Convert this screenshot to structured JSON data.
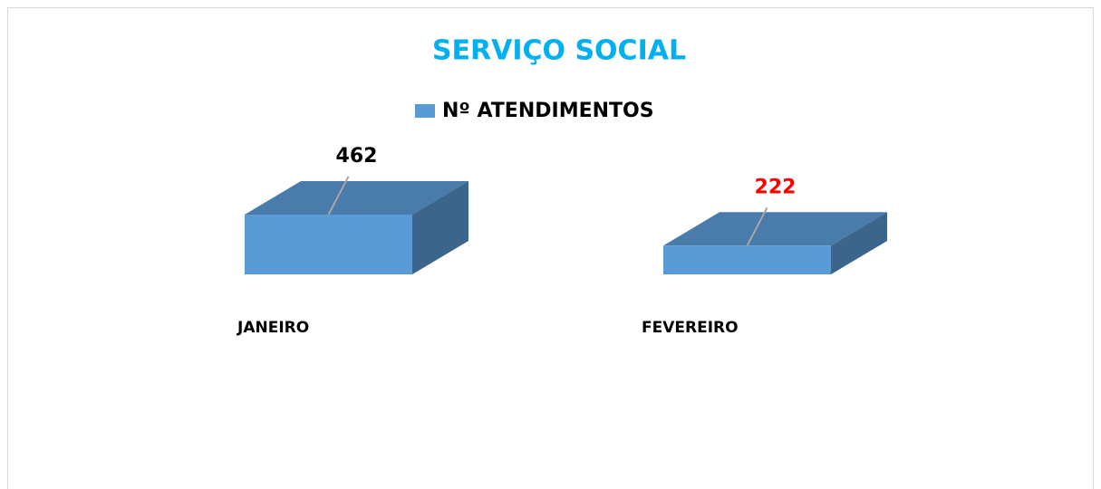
{
  "chart_data": {
    "type": "bar3d",
    "title": "SERVIÇO SOCIAL",
    "series": [
      {
        "name": "Nº ATENDIMENTOS",
        "color": "#5b9bd5",
        "values": [
          462,
          222
        ]
      }
    ],
    "categories": [
      "JANEIRO",
      "FEVEREIRO"
    ],
    "value_label_colors": [
      "#000000",
      "#ff0000"
    ],
    "title_color": "#00b0f0"
  }
}
